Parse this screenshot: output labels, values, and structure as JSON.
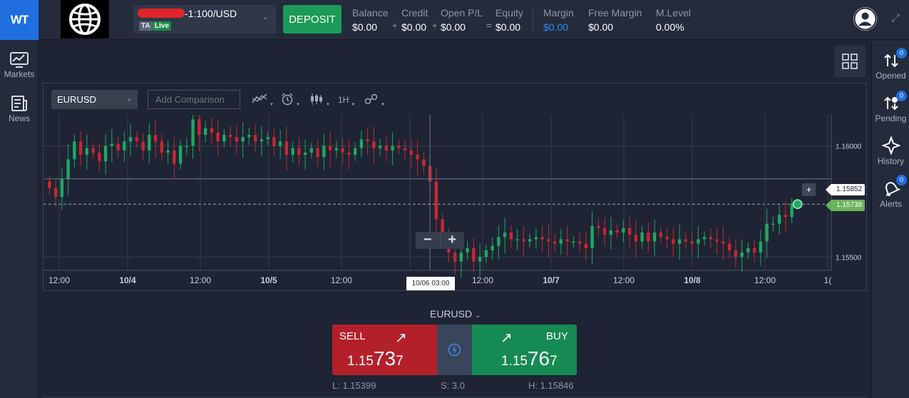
{
  "app": {
    "logo_text": "WT",
    "account_label": "-1:100/USD",
    "account_badge_type": "TA",
    "account_badge_mode": "Live",
    "deposit_label": "DEPOSIT"
  },
  "stats": [
    {
      "label": "Balance",
      "value": "$0.00"
    },
    {
      "label": "Credit",
      "value": "$0.00"
    },
    {
      "label": "Open P/L",
      "value": "$0.00"
    },
    {
      "label": "Equity",
      "value": "$0.00"
    },
    {
      "label": "Margin",
      "value": "$0.00"
    },
    {
      "label": "Free Margin",
      "value": "$0.00"
    },
    {
      "label": "M.Level",
      "value": "0.00%"
    }
  ],
  "operators": [
    "+",
    "+",
    "="
  ],
  "left_nav": [
    {
      "label": "Markets",
      "icon": "chart-icon"
    },
    {
      "label": "News",
      "icon": "news-icon"
    }
  ],
  "right_nav": [
    {
      "label": "Opened",
      "badge": "0",
      "icon": "opened-icon"
    },
    {
      "label": "Pending",
      "badge": "0",
      "icon": "pending-icon"
    },
    {
      "label": "History",
      "badge": "",
      "icon": "history-icon"
    },
    {
      "label": "Alerts",
      "badge": "0",
      "icon": "alerts-icon"
    }
  ],
  "toolbar": {
    "symbol": "EURUSD",
    "compare_placeholder": "Add Comparison",
    "interval": "1H"
  },
  "chart_data": {
    "type": "candlestick",
    "symbol": "EURUSD",
    "interval": "1H",
    "x_ticks": [
      "12:00",
      "10/4",
      "12:00",
      "10/5",
      "12:00",
      "12:00",
      "10/7",
      "12:00",
      "10/8",
      "12:00",
      "1("
    ],
    "crosshair_x_label": "10/06 03:00",
    "y_ticks": [
      "1.16000",
      "1.15500"
    ],
    "y_range": [
      1.1544,
      1.1614
    ],
    "current_bid_label": "1.15738",
    "crosshair_y_label": "1.15852",
    "grid": true,
    "close_path": [
      1.1581,
      1.1577,
      1.1585,
      1.1594,
      1.1602,
      1.1596,
      1.1599,
      1.1597,
      1.1593,
      1.16,
      1.1601,
      1.1598,
      1.1602,
      1.1604,
      1.1602,
      1.1598,
      1.1605,
      1.1602,
      1.1597,
      1.1598,
      1.1592,
      1.16,
      1.16,
      1.1612,
      1.1605,
      1.1608,
      1.1606,
      1.1602,
      1.1605,
      1.1604,
      1.1602,
      1.1604,
      1.1605,
      1.1602,
      1.1603,
      1.1604,
      1.16,
      1.1602,
      1.1596,
      1.1599,
      1.1596,
      1.1597,
      1.1599,
      1.1595,
      1.16,
      1.1598,
      1.1599,
      1.1597,
      1.1596,
      1.1599,
      1.1603,
      1.1602,
      1.1599,
      1.16,
      1.1598,
      1.16,
      1.1599,
      1.1598,
      1.1596,
      1.1594,
      1.1591,
      1.1584,
      1.1567,
      1.1559,
      1.1552,
      1.1548,
      1.1552,
      1.1554,
      1.1548,
      1.155,
      1.1553,
      1.1555,
      1.1559,
      1.1561,
      1.1558,
      1.1558,
      1.1557,
      1.1558,
      1.1559,
      1.1558,
      1.1557,
      1.1556,
      1.1558,
      1.1557,
      1.1557,
      1.1556,
      1.1554,
      1.1564,
      1.1563,
      1.156,
      1.1562,
      1.1561,
      1.1563,
      1.156,
      1.1557,
      1.1561,
      1.1557,
      1.1561,
      1.1559,
      1.1558,
      1.1556,
      1.1558,
      1.1557,
      1.1556,
      1.1558,
      1.1559,
      1.1558,
      1.1557,
      1.1556,
      1.1553,
      1.155,
      1.1552,
      1.1554,
      1.1552,
      1.1557,
      1.1565,
      1.1565,
      1.1569,
      1.1568,
      1.1574
    ]
  },
  "chart_controls": {
    "zoom_out": "−",
    "zoom_in": "+",
    "add_alert": "+"
  },
  "colors": {
    "up": "#21a665",
    "down": "#c62832",
    "accent": "#1f6fde"
  },
  "trade": {
    "symbol": "EURUSD",
    "sell_label": "SELL",
    "buy_label": "BUY",
    "sell_price_prefix": "1.15",
    "sell_price_big": "73",
    "sell_price_suffix": "7",
    "buy_price_prefix": "1.15",
    "buy_price_big": "76",
    "buy_price_suffix": "7",
    "low": "L: 1.15399",
    "spread": "S: 3.0",
    "high": "H: 1.15846"
  }
}
